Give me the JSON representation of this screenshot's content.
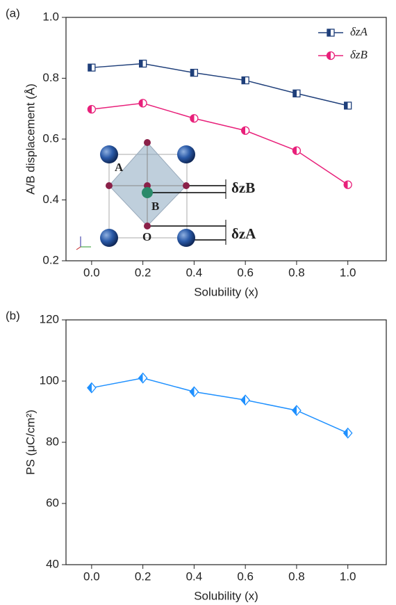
{
  "chart_data": [
    {
      "type": "line",
      "panel_label": "(a)",
      "x": [
        0,
        0.2,
        0.4,
        0.6,
        0.8,
        1
      ],
      "series": [
        {
          "name": "δzA",
          "color": "#1f3f7a",
          "marker": "square",
          "values": [
            0.835,
            0.848,
            0.818,
            0.793,
            0.75,
            0.71
          ]
        },
        {
          "name": "δzB",
          "color": "#e8207a",
          "marker": "circle",
          "values": [
            0.698,
            0.718,
            0.668,
            0.628,
            0.562,
            0.45
          ]
        }
      ],
      "xlim": [
        -0.1,
        1.15
      ],
      "xticks": [
        {
          "value": 0,
          "label": "0.0"
        },
        0.2,
        0.4,
        0.6,
        0.8,
        {
          "value": 1,
          "label": "1.0"
        }
      ],
      "ylim": [
        0.2,
        1
      ],
      "yticks": [
        0.2,
        0.4,
        0.6,
        0.8,
        {
          "value": 1,
          "label": "1.0"
        }
      ],
      "x_label": "Solubility (x)",
      "y_label": "A/B displacement (Å)",
      "legend": "upper right",
      "inset_labels": [
        "A",
        "B",
        "O",
        "δzB",
        "δzA"
      ]
    },
    {
      "type": "line",
      "panel_label": "(b)",
      "x": [
        0,
        0.2,
        0.4,
        0.6,
        0.8,
        1
      ],
      "series": [
        {
          "color": "#1e90ff",
          "marker": "diamond",
          "values": [
            97.8,
            101,
            96.5,
            93.8,
            90.4,
            83
          ]
        }
      ],
      "xlim": [
        -0.1,
        1.15
      ],
      "xticks": [
        {
          "value": 0,
          "label": "0.0"
        },
        0.2,
        0.4,
        0.6,
        0.8,
        {
          "value": 1,
          "label": "1.0"
        }
      ],
      "ylim": [
        40,
        120
      ],
      "yticks": [
        40,
        60,
        80,
        100,
        120
      ],
      "x_label": "Solubility (x)",
      "y_label": "PS (μC/cm²)"
    }
  ]
}
